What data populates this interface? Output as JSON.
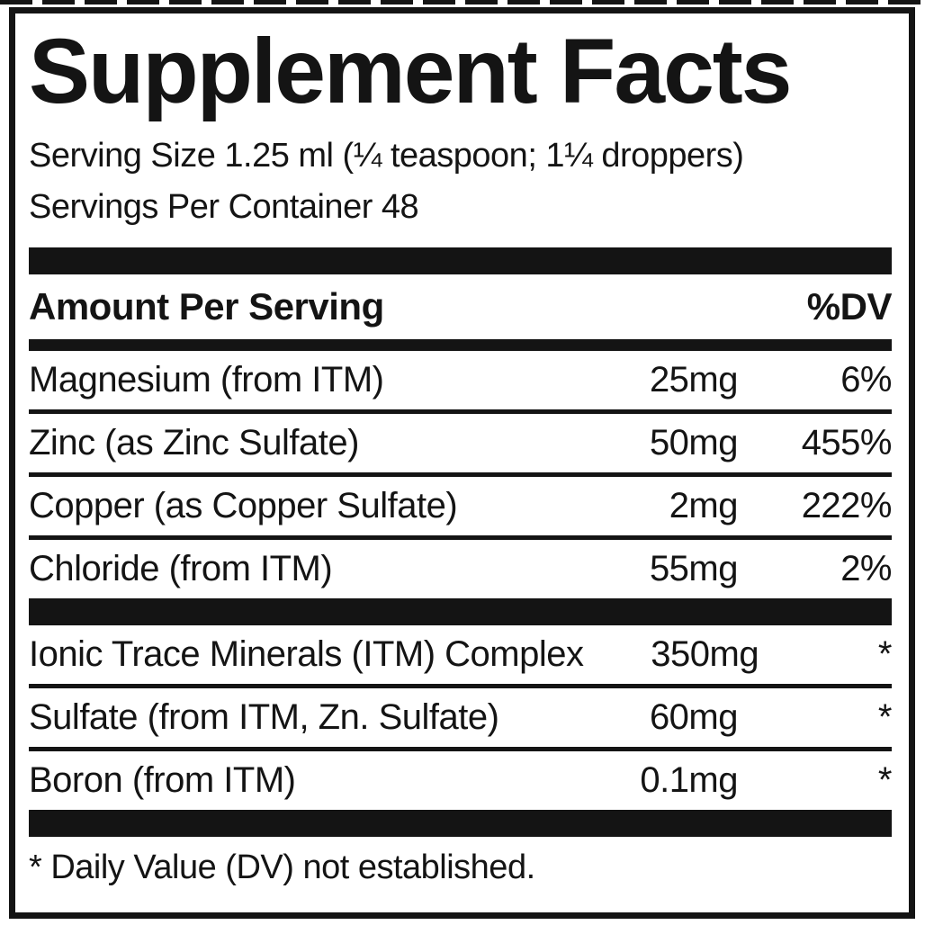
{
  "label": {
    "title": "Supplement Facts",
    "serving_size": "Serving Size 1.25 ml (¼ teaspoon; 1¼ droppers)",
    "servings_per_container": "Servings Per Container 48",
    "columns": {
      "amount_header": "Amount Per Serving",
      "dv_header": "%DV"
    },
    "main_rows": [
      {
        "name": "Magnesium (from ITM)",
        "amount": "25mg",
        "dv": "6%"
      },
      {
        "name": "Zinc (as Zinc Sulfate)",
        "amount": "50mg",
        "dv": "455%"
      },
      {
        "name": "Copper (as Copper Sulfate)",
        "amount": "2mg",
        "dv": "222%"
      },
      {
        "name": "Chloride (from ITM)",
        "amount": "55mg",
        "dv": "2%"
      }
    ],
    "itm_rows": [
      {
        "name": "Ionic Trace Minerals (ITM) Complex",
        "amount": "350mg",
        "dv": "*"
      },
      {
        "name": "Sulfate (from ITM, Zn. Sulfate)",
        "amount": "60mg",
        "dv": "*"
      },
      {
        "name": "Boron (from ITM)",
        "amount": "0.1mg",
        "dv": "*"
      }
    ],
    "footnote": "* Daily Value (DV) not established.",
    "colors": {
      "ink": "#141414",
      "background": "#ffffff"
    }
  }
}
